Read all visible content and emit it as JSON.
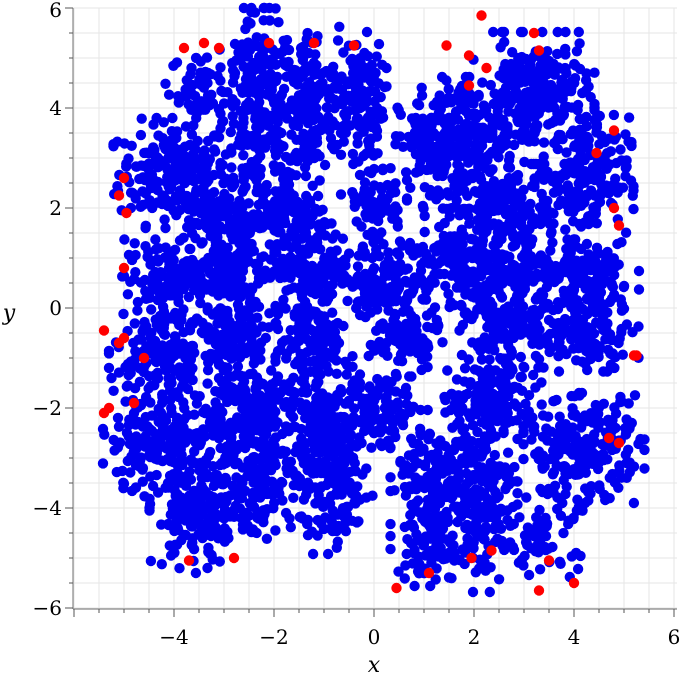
{
  "chart_data": {
    "type": "scatter",
    "title": "",
    "xlabel": "x",
    "ylabel": "y",
    "xlim": [
      -6,
      6
    ],
    "ylim": [
      -6,
      6
    ],
    "x_ticks": [
      "-4",
      "-2",
      "0",
      "2",
      "4",
      "6"
    ],
    "y_ticks": [
      "-6",
      "-4",
      "-2",
      "0",
      "2",
      "4",
      "6"
    ],
    "grid": true,
    "legend": "none",
    "series": [
      {
        "color": "#0000ee",
        "note_clusters": "dense blue point clouds arranged in a roughly 5x5 lattice of blobs",
        "clusters": [
          {
            "cx": -4.0,
            "cy": 2.7,
            "sx": 0.55,
            "sy": 0.5,
            "n": 220
          },
          {
            "cx": -3.4,
            "cy": 4.4,
            "sx": 0.35,
            "sy": 0.35,
            "n": 60
          },
          {
            "cx": -2.3,
            "cy": 3.8,
            "sx": 0.35,
            "sy": 1.0,
            "n": 260
          },
          {
            "cx": -1.3,
            "cy": 4.0,
            "sx": 0.3,
            "sy": 0.8,
            "n": 180
          },
          {
            "cx": -0.3,
            "cy": 4.2,
            "sx": 0.25,
            "sy": 0.6,
            "n": 110
          },
          {
            "cx": 1.2,
            "cy": 3.2,
            "sx": 0.35,
            "sy": 0.55,
            "n": 150
          },
          {
            "cx": 2.0,
            "cy": 3.3,
            "sx": 0.4,
            "sy": 0.6,
            "n": 180
          },
          {
            "cx": 3.2,
            "cy": 4.2,
            "sx": 0.55,
            "sy": 0.6,
            "n": 260
          },
          {
            "cx": 4.2,
            "cy": 2.6,
            "sx": 0.45,
            "sy": 0.6,
            "n": 200
          },
          {
            "cx": -3.0,
            "cy": 1.8,
            "sx": 0.4,
            "sy": 0.3,
            "n": 120
          },
          {
            "cx": -1.6,
            "cy": 1.8,
            "sx": 0.35,
            "sy": 0.5,
            "n": 120
          },
          {
            "cx": 0.0,
            "cy": 2.1,
            "sx": 0.3,
            "sy": 0.45,
            "n": 80
          },
          {
            "cx": 2.6,
            "cy": 1.9,
            "sx": 0.45,
            "sy": 0.35,
            "n": 140
          },
          {
            "cx": -4.1,
            "cy": 0.6,
            "sx": 0.45,
            "sy": 0.35,
            "n": 120
          },
          {
            "cx": -3.0,
            "cy": 0.7,
            "sx": 0.4,
            "sy": 0.35,
            "n": 120
          },
          {
            "cx": -1.2,
            "cy": 0.8,
            "sx": 0.4,
            "sy": 0.4,
            "n": 140
          },
          {
            "cx": 0.2,
            "cy": 0.6,
            "sx": 0.35,
            "sy": 0.35,
            "n": 110
          },
          {
            "cx": 1.6,
            "cy": 0.9,
            "sx": 0.4,
            "sy": 0.45,
            "n": 130
          },
          {
            "cx": 2.8,
            "cy": 0.6,
            "sx": 0.4,
            "sy": 0.35,
            "n": 120
          },
          {
            "cx": 4.2,
            "cy": 0.6,
            "sx": 0.5,
            "sy": 0.35,
            "n": 140
          },
          {
            "cx": -4.2,
            "cy": -0.8,
            "sx": 0.5,
            "sy": 0.35,
            "n": 160
          },
          {
            "cx": -2.8,
            "cy": -0.6,
            "sx": 0.4,
            "sy": 0.35,
            "n": 130
          },
          {
            "cx": -1.2,
            "cy": -0.6,
            "sx": 0.35,
            "sy": 0.4,
            "n": 120
          },
          {
            "cx": 0.6,
            "cy": -0.6,
            "sx": 0.35,
            "sy": 0.35,
            "n": 100
          },
          {
            "cx": 2.7,
            "cy": -0.5,
            "sx": 0.45,
            "sy": 0.4,
            "n": 150
          },
          {
            "cx": 4.3,
            "cy": -0.5,
            "sx": 0.45,
            "sy": 0.35,
            "n": 120
          },
          {
            "cx": -4.1,
            "cy": -2.6,
            "sx": 0.6,
            "sy": 0.6,
            "n": 240
          },
          {
            "cx": -2.6,
            "cy": -2.0,
            "sx": 0.45,
            "sy": 0.45,
            "n": 160
          },
          {
            "cx": -1.0,
            "cy": -2.2,
            "sx": 0.45,
            "sy": 0.5,
            "n": 170
          },
          {
            "cx": 0.2,
            "cy": -2.0,
            "sx": 0.35,
            "sy": 0.4,
            "n": 90
          },
          {
            "cx": 2.4,
            "cy": -1.8,
            "sx": 0.45,
            "sy": 0.35,
            "n": 140
          },
          {
            "cx": 4.2,
            "cy": -2.8,
            "sx": 0.55,
            "sy": 0.5,
            "n": 220
          },
          {
            "cx": -3.5,
            "cy": -4.2,
            "sx": 0.45,
            "sy": 0.5,
            "n": 180
          },
          {
            "cx": -2.2,
            "cy": -3.3,
            "sx": 0.4,
            "sy": 0.6,
            "n": 160
          },
          {
            "cx": -0.8,
            "cy": -3.6,
            "sx": 0.35,
            "sy": 0.6,
            "n": 140
          },
          {
            "cx": 1.1,
            "cy": -3.8,
            "sx": 0.35,
            "sy": 0.8,
            "n": 200
          },
          {
            "cx": 2.1,
            "cy": -3.7,
            "sx": 0.35,
            "sy": 0.9,
            "n": 220
          },
          {
            "cx": 3.4,
            "cy": -4.5,
            "sx": 0.35,
            "sy": 0.4,
            "n": 70
          }
        ]
      },
      {
        "color": "#ff0000",
        "points": [
          [
            -5.4,
            -0.45
          ],
          [
            -5.1,
            -0.7
          ],
          [
            -5.0,
            -0.6
          ],
          [
            -5.4,
            -2.1
          ],
          [
            -5.3,
            -2.0
          ],
          [
            -5.1,
            2.25
          ],
          [
            -5.0,
            2.6
          ],
          [
            -4.95,
            1.9
          ],
          [
            -5.0,
            0.8
          ],
          [
            -4.8,
            -1.9
          ],
          [
            -4.6,
            -1.0
          ],
          [
            -3.8,
            5.2
          ],
          [
            -3.4,
            5.3
          ],
          [
            -3.1,
            5.2
          ],
          [
            -2.1,
            5.3
          ],
          [
            -1.2,
            5.3
          ],
          [
            -0.4,
            5.25
          ],
          [
            1.45,
            5.25
          ],
          [
            1.9,
            5.05
          ],
          [
            1.9,
            4.45
          ],
          [
            2.15,
            5.85
          ],
          [
            2.25,
            4.8
          ],
          [
            3.2,
            5.5
          ],
          [
            3.3,
            5.15
          ],
          [
            4.8,
            3.55
          ],
          [
            4.45,
            3.1
          ],
          [
            4.9,
            1.65
          ],
          [
            4.8,
            2.0
          ],
          [
            5.2,
            -0.95
          ],
          [
            5.25,
            -0.95
          ],
          [
            4.9,
            -2.7
          ],
          [
            4.7,
            -2.6
          ],
          [
            -2.8,
            -5.0
          ],
          [
            -3.7,
            -5.05
          ],
          [
            0.45,
            -5.6
          ],
          [
            1.1,
            -5.3
          ],
          [
            1.95,
            -5.0
          ],
          [
            2.35,
            -4.85
          ],
          [
            3.3,
            -5.65
          ],
          [
            4.0,
            -5.5
          ],
          [
            3.5,
            -5.05
          ]
        ]
      }
    ]
  }
}
